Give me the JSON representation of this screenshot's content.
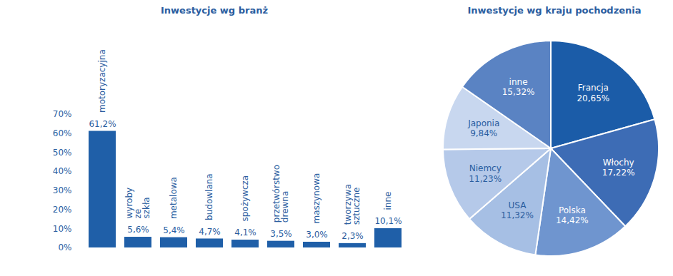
{
  "chart_data": [
    {
      "type": "bar",
      "title": "Inwestycje wg branż",
      "categories": [
        "motoryzacyjna",
        "wyroby ze szkła",
        "metalowa",
        "budowlana",
        "spożywcza",
        "przetwórstwo drewna",
        "maszynowa",
        "tworzywa sztuczne",
        "inne"
      ],
      "values": [
        61.2,
        5.6,
        5.4,
        4.7,
        4.1,
        3.5,
        3.0,
        2.3,
        10.1
      ],
      "value_labels": [
        "61,2%",
        "5,6%",
        "5,4%",
        "4,7%",
        "4,1%",
        "3,5%",
        "3,0%",
        "2,3%",
        "10,1%"
      ],
      "color": "#1f5fa8",
      "ylim": [
        0,
        70
      ],
      "yticks": [
        {
          "value": 0,
          "label": "0%"
        },
        {
          "value": 10,
          "label": "10%"
        },
        {
          "value": 20,
          "label": "20%"
        },
        {
          "value": 30,
          "label": "30%"
        },
        {
          "value": 40,
          "label": "40%"
        },
        {
          "value": 50,
          "label": "50%"
        },
        {
          "value": 60,
          "label": "60%"
        },
        {
          "value": 70,
          "label": "70%"
        }
      ],
      "grid": false,
      "data_labels": true,
      "tick_labels": "y"
    },
    {
      "type": "pie",
      "title": "Inwestycje wg kraju pochodzenia",
      "categories": [
        "Francja",
        "Włochy",
        "Polska",
        "USA",
        "Niemcy",
        "Japonia",
        "inne"
      ],
      "values": [
        20.65,
        17.22,
        14.42,
        11.32,
        11.23,
        9.84,
        15.32
      ],
      "value_labels": [
        "20,65%",
        "17,22%",
        "14,42%",
        "11,32%",
        "11,23%",
        "9,84%",
        "15,32%"
      ],
      "colors": [
        "#1b5ca8",
        "#3d6cb5",
        "#6f95cf",
        "#a6bfe4",
        "#b5c9e9",
        "#c8d7ef",
        "#5a83c3"
      ],
      "data_labels": true
    }
  ]
}
